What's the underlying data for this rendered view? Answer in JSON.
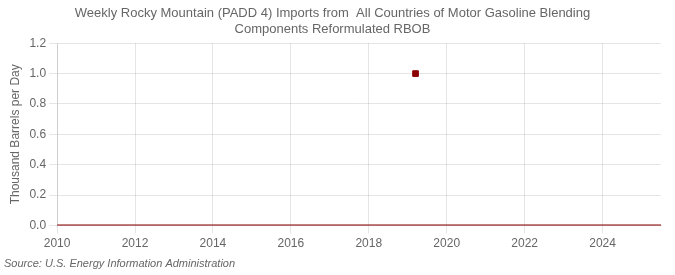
{
  "chart_data": {
    "type": "line",
    "title": [
      "Weekly Rocky Mountain (PADD 4) Imports from  All Countries of Motor Gasoline Blending",
      "Components Reformulated RBOB"
    ],
    "ylabel": "Thousand Barrels per Day",
    "source": "Source: U.S. Energy Information Administration",
    "xlim": [
      2010,
      2025.5
    ],
    "ylim": [
      0.0,
      1.2
    ],
    "xticks": [
      2010,
      2012,
      2014,
      2016,
      2018,
      2020,
      2022,
      2024
    ],
    "yticks": [
      {
        "value": 0.0,
        "label": "0.0"
      },
      {
        "value": 0.2,
        "label": "0.2"
      },
      {
        "value": 0.4,
        "label": "0.4"
      },
      {
        "value": 0.6,
        "label": "0.6"
      },
      {
        "value": 0.8,
        "label": "0.8"
      },
      {
        "value": 1.0,
        "label": "1.0"
      },
      {
        "value": 1.2,
        "label": "1.2"
      }
    ],
    "grid": true,
    "series": [
      {
        "type": "line",
        "color": "#8b0000",
        "x": [
          2010,
          2025.5
        ],
        "values": [
          0.0,
          0.0
        ]
      },
      {
        "type": "scatter",
        "color": "#8b0000",
        "marker": "square",
        "x": [
          2019.2
        ],
        "values": [
          1.0
        ]
      }
    ]
  }
}
